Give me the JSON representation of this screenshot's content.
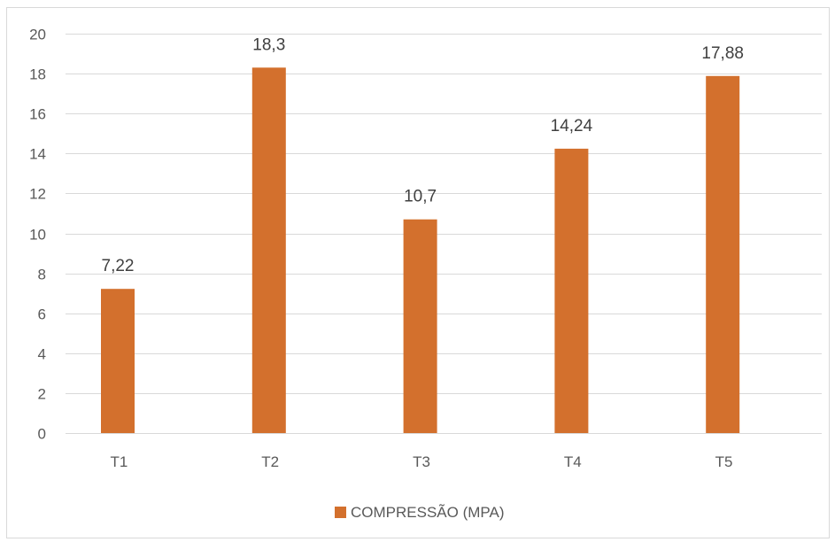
{
  "chart_data": {
    "type": "bar",
    "title": "",
    "xlabel": "",
    "ylabel": "",
    "categories": [
      "T1",
      "T2",
      "T3",
      "T4",
      "T5"
    ],
    "series": [
      {
        "name": "COMPRESSÃO (MPA)",
        "values": [
          7.22,
          18.3,
          10.7,
          14.24,
          17.88
        ],
        "data_labels": [
          "7,22",
          "18,3",
          "10,7",
          "14,24",
          "17,88"
        ],
        "color": "#d3702d"
      }
    ],
    "ylim": [
      0,
      20
    ],
    "y_ticks": [
      0,
      2,
      4,
      6,
      8,
      10,
      12,
      14,
      16,
      18,
      20
    ],
    "grid": true,
    "legend_position": "bottom"
  },
  "colors": {
    "gridline": "#d9d9d9",
    "tick_text": "#595959",
    "label_text": "#404040"
  }
}
